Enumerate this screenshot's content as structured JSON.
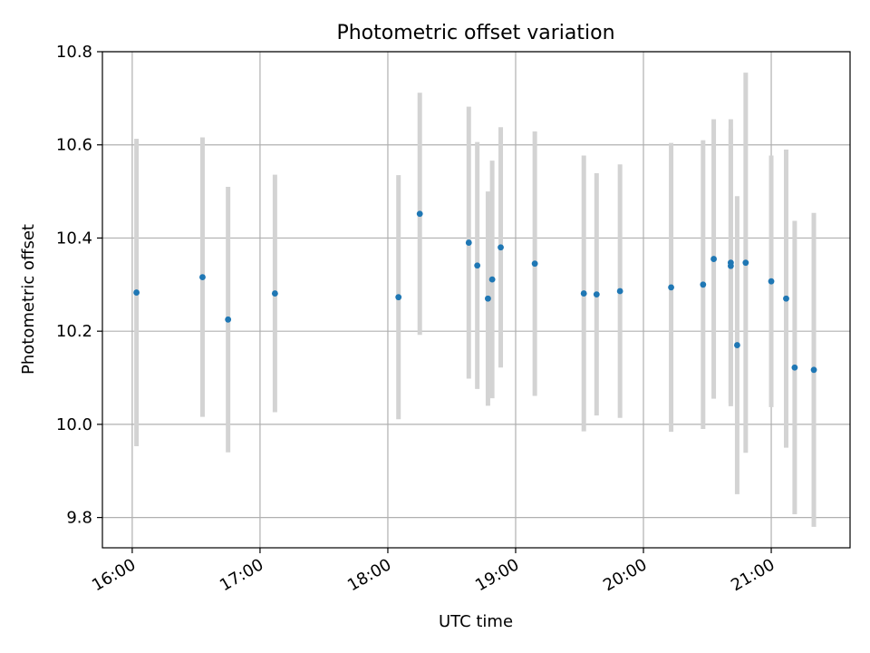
{
  "chart_data": {
    "type": "scatter",
    "title": "Photometric offset variation",
    "xlabel": "UTC time",
    "ylabel": "Photometric offset",
    "x_ticks": [
      "16:00",
      "17:00",
      "18:00",
      "19:00",
      "20:00",
      "21:00"
    ],
    "y_ticks": [
      "9.8",
      "10.0",
      "10.2",
      "10.4",
      "10.6",
      "10.8"
    ],
    "ylim": [
      9.735,
      10.8
    ],
    "xlim": [
      "15:46",
      "21:37"
    ],
    "grid": true,
    "colors": {
      "point": "#1f77b4",
      "errorbar": "#d3d3d3",
      "grid": "#b0b0b0"
    },
    "points": [
      {
        "x": "16:02",
        "y": 10.283,
        "err": 0.33
      },
      {
        "x": "16:33",
        "y": 10.316,
        "err": 0.3
      },
      {
        "x": "16:45",
        "y": 10.225,
        "err": 0.285
      },
      {
        "x": "17:07",
        "y": 10.281,
        "err": 0.255
      },
      {
        "x": "18:05",
        "y": 10.273,
        "err": 0.262
      },
      {
        "x": "18:15",
        "y": 10.452,
        "err": 0.26
      },
      {
        "x": "18:38",
        "y": 10.39,
        "err": 0.292
      },
      {
        "x": "18:42",
        "y": 10.341,
        "err": 0.265
      },
      {
        "x": "18:47",
        "y": 10.27,
        "err": 0.23
      },
      {
        "x": "18:49",
        "y": 10.311,
        "err": 0.255
      },
      {
        "x": "18:53",
        "y": 10.38,
        "err": 0.258
      },
      {
        "x": "19:09",
        "y": 10.345,
        "err": 0.284
      },
      {
        "x": "19:32",
        "y": 10.281,
        "err": 0.296
      },
      {
        "x": "19:38",
        "y": 10.279,
        "err": 0.26
      },
      {
        "x": "19:49",
        "y": 10.286,
        "err": 0.272
      },
      {
        "x": "20:13",
        "y": 10.294,
        "err": 0.31
      },
      {
        "x": "20:28",
        "y": 10.3,
        "err": 0.31
      },
      {
        "x": "20:33",
        "y": 10.355,
        "err": 0.3
      },
      {
        "x": "20:41",
        "y": 10.347,
        "err": 0.308
      },
      {
        "x": "20:41",
        "y": 10.34,
        "err": 0.295
      },
      {
        "x": "20:44",
        "y": 10.17,
        "err": 0.32
      },
      {
        "x": "20:48",
        "y": 10.347,
        "err": 0.408
      },
      {
        "x": "21:00",
        "y": 10.307,
        "err": 0.27
      },
      {
        "x": "21:07",
        "y": 10.27,
        "err": 0.32
      },
      {
        "x": "21:11",
        "y": 10.122,
        "err": 0.315
      },
      {
        "x": "21:20",
        "y": 10.117,
        "err": 0.337
      }
    ]
  }
}
